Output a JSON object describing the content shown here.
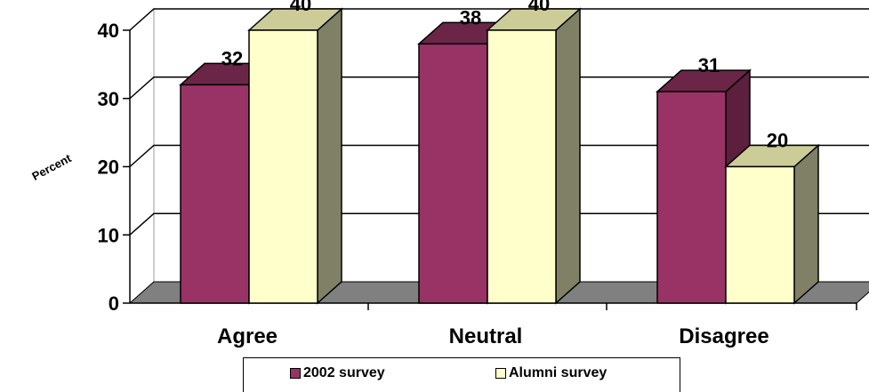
{
  "chart_data": {
    "type": "bar",
    "style": "3d-clustered",
    "categories": [
      "Agree",
      "Neutral",
      "Disagree"
    ],
    "series": [
      {
        "name": "2002 survey",
        "values": [
          32,
          38,
          31
        ],
        "color": "#993366",
        "top_color": "#6b2547",
        "side_color": "#5c1f3d"
      },
      {
        "name": "Alumni survey",
        "values": [
          40,
          40,
          20
        ],
        "color": "#ffffcc",
        "top_color": "#cccc99",
        "side_color": "#808066"
      }
    ],
    "ylabel": "Percent",
    "ylim": [
      0,
      40
    ],
    "yticks": [
      0,
      10,
      20,
      30,
      40
    ],
    "grid": true,
    "floor_color": "#808080",
    "legend_position": "bottom"
  }
}
